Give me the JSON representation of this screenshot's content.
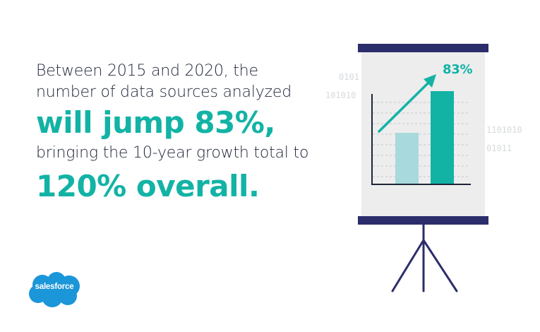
{
  "headline": {
    "line1": "Between 2015 and 2020, the",
    "line2": "number of data sources analyzed",
    "line3": "will jump 83%,",
    "line4": "bringing the 10-year growth total to",
    "line5": "120% overall."
  },
  "decoration": {
    "binary": [
      "0101",
      "101010",
      "1101010",
      "01011"
    ]
  },
  "chart": {
    "label": "83%",
    "bar_colors": [
      "#a8d9dd",
      "#12b3a5"
    ],
    "board_frame_color": "#2b2e6b"
  },
  "logo": {
    "text": "salesforce",
    "color": "#1b96d8",
    "icon": "salesforce-cloud-logo"
  },
  "colors": {
    "accent": "#12b3a5",
    "text": "#1e2537"
  }
}
